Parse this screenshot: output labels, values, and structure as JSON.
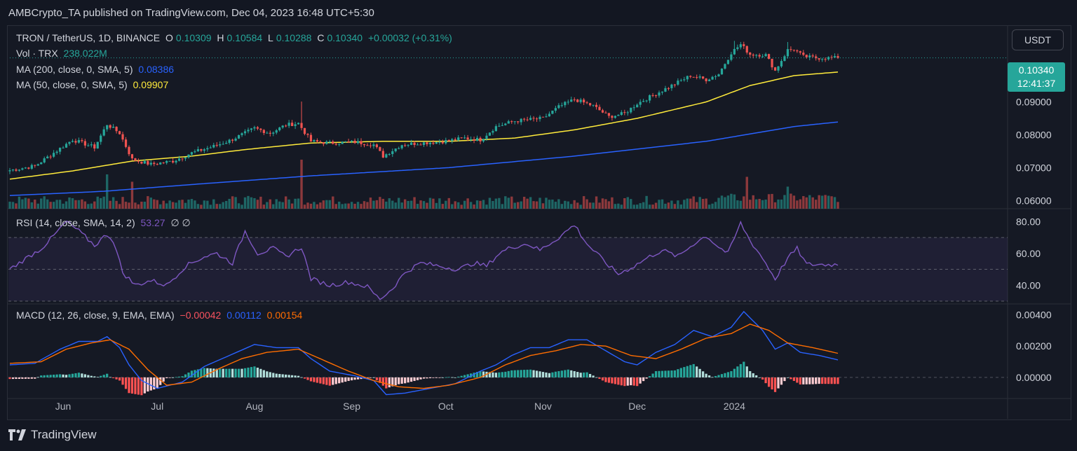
{
  "publish_line": "AMBCrypto_TA published on TradingView.com, Dec 04, 2023 16:48 UTC+5:30",
  "brand": "TradingView",
  "legend": {
    "symbol": "TRON / TetherUS, 1D, BINANCE",
    "o_label": "O",
    "o_value": "0.10309",
    "h_label": "H",
    "h_value": "0.10584",
    "l_label": "L",
    "l_value": "0.10288",
    "c_label": "C",
    "c_value": "0.10340",
    "change": "+0.00032 (+0.31%)",
    "vol_label": "Vol · TRX",
    "vol_value": "238.022M",
    "ma200_label": "MA (200, close, 0, SMA, 5)",
    "ma200_value": "0.08386",
    "ma50_label": "MA (50, close, 0, SMA, 5)",
    "ma50_value": "0.09907",
    "rsi_label": "RSI (14, close, SMA, 14, 2)",
    "rsi_value": "53.27",
    "rsi_extra": "∅ ∅",
    "macd_label": "MACD (12, 26, close, 9, EMA, EMA)",
    "macd_hist": "−0.00042",
    "macd_line": "0.00112",
    "macd_signal": "0.00154"
  },
  "currency_button": "USDT",
  "price_tag": {
    "price": "0.10340",
    "countdown": "12:41:37"
  },
  "colors": {
    "up": "#26a69a",
    "down": "#ef5350",
    "ma50": "#ffeb3b",
    "ma200": "#2962ff",
    "rsi": "#7e57c2",
    "macd": "#2962ff",
    "signal": "#ff6d00",
    "hist_up_strong": "#26a69a",
    "hist_up_weak": "#b2dfdb",
    "hist_down_strong": "#ff5252",
    "hist_down_weak": "#ffcdd2"
  },
  "chart_data": [
    {
      "type": "candlestick",
      "title": "TRON / TetherUS, 1D, BINANCE",
      "ylim": [
        0.0575,
        0.1125
      ],
      "y_ticks": [
        "0.06000",
        "0.07000",
        "0.08000",
        "0.09000"
      ],
      "x_ticks": [
        "Jun",
        "Jul",
        "Aug",
        "Sep",
        "Oct",
        "Nov",
        "Dec",
        "2024"
      ],
      "start_date": "2023-05-15",
      "close_anchors": [
        [
          0,
          0.0692
        ],
        [
          8,
          0.0705
        ],
        [
          14,
          0.0745
        ],
        [
          20,
          0.0785
        ],
        [
          27,
          0.0762
        ],
        [
          31,
          0.0832
        ],
        [
          35,
          0.0805
        ],
        [
          39,
          0.0725
        ],
        [
          45,
          0.071
        ],
        [
          52,
          0.072
        ],
        [
          58,
          0.0745
        ],
        [
          65,
          0.0765
        ],
        [
          70,
          0.0782
        ],
        [
          75,
          0.0805
        ],
        [
          78,
          0.082
        ],
        [
          83,
          0.0805
        ],
        [
          88,
          0.083
        ],
        [
          92,
          0.0835
        ],
        [
          96,
          0.078
        ],
        [
          102,
          0.0775
        ],
        [
          110,
          0.0778
        ],
        [
          116,
          0.077
        ],
        [
          119,
          0.0735
        ],
        [
          125,
          0.077
        ],
        [
          131,
          0.0775
        ],
        [
          136,
          0.0778
        ],
        [
          140,
          0.0782
        ],
        [
          145,
          0.079
        ],
        [
          150,
          0.0785
        ],
        [
          155,
          0.0825
        ],
        [
          161,
          0.0842
        ],
        [
          170,
          0.085
        ],
        [
          175,
          0.0885
        ],
        [
          180,
          0.0908
        ],
        [
          186,
          0.0888
        ],
        [
          191,
          0.0855
        ],
        [
          196,
          0.0865
        ],
        [
          200,
          0.0895
        ],
        [
          206,
          0.0925
        ],
        [
          212,
          0.0955
        ],
        [
          217,
          0.098
        ],
        [
          222,
          0.0968
        ],
        [
          226,
          0.0985
        ],
        [
          230,
          0.105
        ],
        [
          233,
          0.1075
        ],
        [
          236,
          0.1045
        ],
        [
          241,
          0.1043
        ],
        [
          244,
          0.0995
        ],
        [
          248,
          0.1058
        ],
        [
          250,
          0.106
        ],
        [
          253,
          0.1038
        ],
        [
          257,
          0.1034
        ],
        [
          264,
          0.1034
        ]
      ],
      "ma50_anchors": [
        [
          0,
          0.0665
        ],
        [
          20,
          0.069
        ],
        [
          39,
          0.072
        ],
        [
          58,
          0.0735
        ],
        [
          75,
          0.0755
        ],
        [
          96,
          0.0775
        ],
        [
          119,
          0.078
        ],
        [
          140,
          0.078
        ],
        [
          161,
          0.079
        ],
        [
          180,
          0.0815
        ],
        [
          200,
          0.085
        ],
        [
          222,
          0.09
        ],
        [
          236,
          0.095
        ],
        [
          250,
          0.098
        ],
        [
          264,
          0.0991
        ]
      ],
      "ma200_anchors": [
        [
          0,
          0.0615
        ],
        [
          30,
          0.0628
        ],
        [
          60,
          0.065
        ],
        [
          96,
          0.0675
        ],
        [
          140,
          0.07
        ],
        [
          180,
          0.0735
        ],
        [
          222,
          0.078
        ],
        [
          250,
          0.0825
        ],
        [
          264,
          0.0839
        ]
      ],
      "last_close": 0.1034,
      "last_volume": "238.022M",
      "volume_spikes": [
        [
          31,
          0.7
        ],
        [
          39,
          0.55
        ],
        [
          93,
          1.0
        ],
        [
          235,
          0.65
        ],
        [
          248,
          0.45
        ]
      ]
    },
    {
      "type": "line",
      "title": "RSI (14, close, SMA, 14, 2)",
      "ylim": [
        30,
        85
      ],
      "y_ticks": [
        "40.00",
        "60.00",
        "80.00"
      ],
      "band": [
        30,
        70
      ],
      "midline": 50,
      "anchors": [
        [
          0,
          50
        ],
        [
          6,
          58
        ],
        [
          10,
          63
        ],
        [
          14,
          71
        ],
        [
          18,
          80
        ],
        [
          22,
          74
        ],
        [
          27,
          65
        ],
        [
          31,
          72
        ],
        [
          33,
          68
        ],
        [
          36,
          48
        ],
        [
          40,
          40
        ],
        [
          45,
          43
        ],
        [
          50,
          40
        ],
        [
          56,
          52
        ],
        [
          62,
          58
        ],
        [
          66,
          60
        ],
        [
          71,
          54
        ],
        [
          75,
          74
        ],
        [
          79,
          60
        ],
        [
          84,
          63
        ],
        [
          88,
          58
        ],
        [
          93,
          64
        ],
        [
          96,
          44
        ],
        [
          102,
          40
        ],
        [
          108,
          42
        ],
        [
          114,
          39
        ],
        [
          118,
          31
        ],
        [
          122,
          38
        ],
        [
          126,
          48
        ],
        [
          131,
          54
        ],
        [
          137,
          52
        ],
        [
          143,
          50
        ],
        [
          148,
          54
        ],
        [
          152,
          52
        ],
        [
          156,
          60
        ],
        [
          160,
          64
        ],
        [
          165,
          66
        ],
        [
          169,
          62
        ],
        [
          175,
          70
        ],
        [
          180,
          78
        ],
        [
          184,
          66
        ],
        [
          190,
          54
        ],
        [
          194,
          47
        ],
        [
          199,
          52
        ],
        [
          204,
          58
        ],
        [
          208,
          62
        ],
        [
          213,
          58
        ],
        [
          218,
          66
        ],
        [
          222,
          71
        ],
        [
          226,
          64
        ],
        [
          229,
          60
        ],
        [
          233,
          79
        ],
        [
          236,
          68
        ],
        [
          240,
          57
        ],
        [
          244,
          44
        ],
        [
          248,
          57
        ],
        [
          251,
          63
        ],
        [
          254,
          53
        ],
        [
          260,
          53
        ],
        [
          264,
          53
        ]
      ],
      "last_value": 53.27
    },
    {
      "type": "line",
      "title": "MACD (12, 26, close, 9, EMA, EMA)",
      "ylim": [
        -0.0013,
        0.0046
      ],
      "y_ticks": [
        "0.00000",
        "0.00200",
        "0.00400"
      ],
      "series": [
        {
          "name": "MACD",
          "anchors": [
            [
              0,
              0.0008
            ],
            [
              8,
              0.0009
            ],
            [
              16,
              0.0018
            ],
            [
              22,
              0.0023
            ],
            [
              28,
              0.0023
            ],
            [
              31,
              0.0026
            ],
            [
              35,
              0.0019
            ],
            [
              38,
              0.0008
            ],
            [
              42,
              -0.0002
            ],
            [
              47,
              -0.0007
            ],
            [
              55,
              -0.0003
            ],
            [
              62,
              0.0007
            ],
            [
              70,
              0.0014
            ],
            [
              78,
              0.0021
            ],
            [
              85,
              0.0019
            ],
            [
              92,
              0.0019
            ],
            [
              96,
              0.0012
            ],
            [
              102,
              0.0004
            ],
            [
              110,
              0.0001
            ],
            [
              116,
              -0.0002
            ],
            [
              120,
              -0.0011
            ],
            [
              126,
              -0.001
            ],
            [
              134,
              -0.0007
            ],
            [
              142,
              -0.0004
            ],
            [
              150,
              0.0004
            ],
            [
              155,
              0.0008
            ],
            [
              160,
              0.0014
            ],
            [
              166,
              0.0019
            ],
            [
              172,
              0.0019
            ],
            [
              178,
              0.0024
            ],
            [
              184,
              0.0024
            ],
            [
              190,
              0.0017
            ],
            [
              196,
              0.001
            ],
            [
              200,
              0.0008
            ],
            [
              206,
              0.0016
            ],
            [
              212,
              0.0021
            ],
            [
              218,
              0.003
            ],
            [
              224,
              0.0026
            ],
            [
              230,
              0.0032
            ],
            [
              234,
              0.0042
            ],
            [
              240,
              0.003
            ],
            [
              244,
              0.0018
            ],
            [
              248,
              0.0022
            ],
            [
              252,
              0.0016
            ],
            [
              258,
              0.0014
            ],
            [
              264,
              0.00112
            ]
          ]
        },
        {
          "name": "Signal",
          "anchors": [
            [
              0,
              0.0009
            ],
            [
              10,
              0.001
            ],
            [
              18,
              0.0018
            ],
            [
              26,
              0.0022
            ],
            [
              32,
              0.0024
            ],
            [
              38,
              0.0018
            ],
            [
              44,
              0.0005
            ],
            [
              50,
              -0.0005
            ],
            [
              58,
              -0.0003
            ],
            [
              66,
              0.0005
            ],
            [
              74,
              0.0012
            ],
            [
              82,
              0.0016
            ],
            [
              92,
              0.0018
            ],
            [
              100,
              0.0011
            ],
            [
              108,
              0.0004
            ],
            [
              116,
              -0.0002
            ],
            [
              124,
              -0.0006
            ],
            [
              132,
              -0.0007
            ],
            [
              140,
              -0.0005
            ],
            [
              150,
              0.0
            ],
            [
              158,
              0.0008
            ],
            [
              166,
              0.0014
            ],
            [
              174,
              0.0017
            ],
            [
              182,
              0.0021
            ],
            [
              190,
              0.002
            ],
            [
              198,
              0.0014
            ],
            [
              206,
              0.0012
            ],
            [
              214,
              0.0018
            ],
            [
              222,
              0.0025
            ],
            [
              230,
              0.0028
            ],
            [
              236,
              0.0034
            ],
            [
              242,
              0.003
            ],
            [
              248,
              0.0022
            ],
            [
              256,
              0.0019
            ],
            [
              264,
              0.00154
            ]
          ]
        }
      ],
      "histogram_last": -0.00042
    }
  ]
}
